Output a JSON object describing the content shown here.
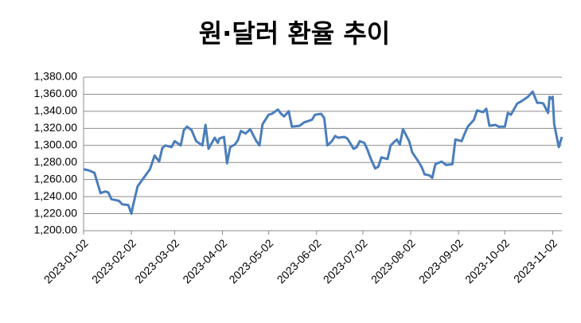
{
  "chart_data": {
    "type": "line",
    "title": "원·달러 환율 추이",
    "x": [
      "2023-01-02",
      "2023-01-05",
      "2023-01-09",
      "2023-01-12",
      "2023-01-13",
      "2023-01-16",
      "2023-01-18",
      "2023-01-20",
      "2023-01-25",
      "2023-01-27",
      "2023-01-31",
      "2023-02-01",
      "2023-02-02",
      "2023-02-03",
      "2023-02-06",
      "2023-02-10",
      "2023-02-14",
      "2023-02-17",
      "2023-02-20",
      "2023-02-22",
      "2023-02-24",
      "2023-02-28",
      "2023-03-02",
      "2023-03-06",
      "2023-03-08",
      "2023-03-10",
      "2023-03-13",
      "2023-03-16",
      "2023-03-20",
      "2023-03-22",
      "2023-03-24",
      "2023-03-28",
      "2023-03-30",
      "2023-03-31",
      "2023-04-03",
      "2023-04-05",
      "2023-04-07",
      "2023-04-10",
      "2023-04-12",
      "2023-04-14",
      "2023-04-17",
      "2023-04-20",
      "2023-04-24",
      "2023-04-26",
      "2023-04-28",
      "2023-05-02",
      "2023-05-04",
      "2023-05-08",
      "2023-05-10",
      "2023-05-12",
      "2023-05-15",
      "2023-05-17",
      "2023-05-22",
      "2023-05-25",
      "2023-05-30",
      "2023-06-01",
      "2023-06-05",
      "2023-06-07",
      "2023-06-09",
      "2023-06-12",
      "2023-06-14",
      "2023-06-16",
      "2023-06-20",
      "2023-06-22",
      "2023-06-26",
      "2023-06-28",
      "2023-06-30",
      "2023-07-03",
      "2023-07-05",
      "2023-07-07",
      "2023-07-10",
      "2023-07-12",
      "2023-07-14",
      "2023-07-18",
      "2023-07-20",
      "2023-07-24",
      "2023-07-26",
      "2023-07-28",
      "2023-08-01",
      "2023-08-03",
      "2023-08-07",
      "2023-08-09",
      "2023-08-11",
      "2023-08-14",
      "2023-08-16",
      "2023-08-18",
      "2023-08-22",
      "2023-08-25",
      "2023-08-29",
      "2023-08-31",
      "2023-09-04",
      "2023-09-06",
      "2023-09-08",
      "2023-09-12",
      "2023-09-14",
      "2023-09-18",
      "2023-09-20",
      "2023-09-22",
      "2023-09-26",
      "2023-09-28",
      "2023-10-02",
      "2023-10-04",
      "2023-10-06",
      "2023-10-10",
      "2023-10-13",
      "2023-10-17",
      "2023-10-20",
      "2023-10-23",
      "2023-10-25",
      "2023-10-27",
      "2023-10-30",
      "2023-10-31",
      "2023-11-01",
      "2023-11-02",
      "2023-11-03",
      "2023-11-06",
      "2023-11-08"
    ],
    "values": [
      1272,
      1271,
      1268,
      1250,
      1244,
      1246,
      1245,
      1237,
      1235,
      1231,
      1230,
      1225,
      1220,
      1229,
      1252,
      1262,
      1272,
      1288,
      1281,
      1297,
      1300,
      1298,
      1305,
      1300,
      1318,
      1322,
      1318,
      1305,
      1300,
      1324,
      1296,
      1309,
      1303,
      1308,
      1310,
      1279,
      1298,
      1301,
      1306,
      1317,
      1314,
      1319,
      1305,
      1300,
      1325,
      1336,
      1337,
      1342,
      1337,
      1334,
      1340,
      1322,
      1323,
      1327,
      1330,
      1336,
      1337,
      1332,
      1300,
      1305,
      1311,
      1309,
      1310,
      1308,
      1296,
      1298,
      1305,
      1303,
      1295,
      1285,
      1273,
      1275,
      1286,
      1284,
      1300,
      1307,
      1301,
      1319,
      1305,
      1292,
      1281,
      1275,
      1266,
      1265,
      1262,
      1278,
      1281,
      1277,
      1278,
      1307,
      1305,
      1314,
      1322,
      1330,
      1341,
      1339,
      1343,
      1323,
      1324,
      1322,
      1322,
      1338,
      1336,
      1349,
      1352,
      1357,
      1363,
      1350,
      1350,
      1349,
      1338,
      1357,
      1355,
      1357,
      1325,
      1298,
      1310
    ],
    "color": "#4a7ebb",
    "xlim": [
      "2023-01-02",
      "2023-11-08"
    ],
    "xticks": [
      "2023-01-02",
      "2023-02-02",
      "2023-03-02",
      "2023-04-02",
      "2023-05-02",
      "2023-06-02",
      "2023-07-02",
      "2023-08-02",
      "2023-09-02",
      "2023-10-02",
      "2023-11-02"
    ],
    "ylim": [
      1200,
      1380
    ],
    "yticks": [
      {
        "value": 1200,
        "label": "1,200.00"
      },
      {
        "value": 1220,
        "label": "1,220.00"
      },
      {
        "value": 1240,
        "label": "1,240.00"
      },
      {
        "value": 1260,
        "label": "1,260.00"
      },
      {
        "value": 1280,
        "label": "1,280.00"
      },
      {
        "value": 1300,
        "label": "1,300.00"
      },
      {
        "value": 1320,
        "label": "1,320.00"
      },
      {
        "value": 1340,
        "label": "1,340.00"
      },
      {
        "value": 1360,
        "label": "1,360.00"
      },
      {
        "value": 1380,
        "label": "1,380.00"
      }
    ],
    "grid": true
  }
}
